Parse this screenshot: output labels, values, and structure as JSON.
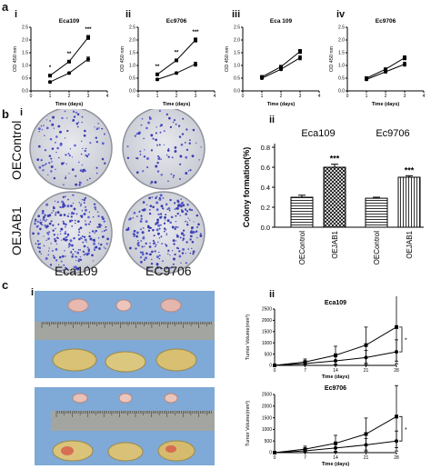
{
  "figure": {
    "panel_a": {
      "letter": "a",
      "subpanels": [
        {
          "roman": "i",
          "title": "Eca109",
          "ylabel": "OD 450 nm",
          "xlabel": "Time (days)"
        },
        {
          "roman": "ii",
          "title": "Ec9706",
          "ylabel": "OD 450 nm",
          "xlabel": "Time (days)"
        },
        {
          "roman": "iii",
          "title": "Eca 109",
          "ylabel": "OD 450 nm",
          "xlabel": "Time (days)"
        },
        {
          "roman": "iv",
          "title": "Ec9706",
          "ylabel": "OD 450 nm",
          "xlabel": "Time (days)"
        }
      ]
    },
    "panel_b": {
      "letter": "b",
      "roman_left": "i",
      "roman_right": "ii",
      "row_labels": [
        "OEControl",
        "OEJAB1"
      ],
      "col_labels": [
        "Eca109",
        "EC9706"
      ]
    },
    "panel_c": {
      "letter": "c",
      "roman_left": "i",
      "roman_right": "ii"
    }
  },
  "chart_data": [
    {
      "type": "line",
      "id": "a-i",
      "title": "Eca109",
      "xlabel": "Time (days)",
      "ylabel": "OD 450 nm",
      "x": [
        1,
        2,
        3
      ],
      "xticks": [
        0,
        1,
        2,
        3,
        4
      ],
      "yticks": [
        "0.0",
        "0.5",
        "1.0",
        "1.5",
        "2.0",
        "2.5"
      ],
      "ylim": [
        0,
        2.5
      ],
      "series": [
        {
          "values": [
            0.6,
            1.15,
            2.1
          ]
        },
        {
          "values": [
            0.35,
            0.7,
            1.25
          ]
        }
      ],
      "annotations": [
        "*",
        "**",
        "***"
      ]
    },
    {
      "type": "line",
      "id": "a-ii",
      "title": "Ec9706",
      "xlabel": "Time (days)",
      "ylabel": "OD 450 nm",
      "x": [
        1,
        2,
        3
      ],
      "xticks": [
        0,
        1,
        2,
        3,
        4
      ],
      "yticks": [
        "0.0",
        "0.5",
        "1.0",
        "1.5",
        "2.0",
        "2.5"
      ],
      "ylim": [
        0,
        2.5
      ],
      "series": [
        {
          "values": [
            0.65,
            1.2,
            2.0
          ]
        },
        {
          "values": [
            0.45,
            0.7,
            1.05
          ]
        }
      ],
      "annotations": [
        "**",
        "**",
        "***"
      ]
    },
    {
      "type": "line",
      "id": "a-iii",
      "title": "Eca 109",
      "xlabel": "Time (days)",
      "ylabel": "OD 450 nm",
      "x": [
        1,
        2,
        3
      ],
      "xticks": [
        0,
        1,
        2,
        3,
        4
      ],
      "yticks": [
        "0.0",
        "0.5",
        "1.0",
        "1.5",
        "2.0",
        "2.5"
      ],
      "ylim": [
        0,
        2.5
      ],
      "series": [
        {
          "values": [
            0.55,
            0.95,
            1.55
          ]
        },
        {
          "values": [
            0.5,
            0.85,
            1.3
          ]
        }
      ],
      "annotations": []
    },
    {
      "type": "line",
      "id": "a-iv",
      "title": "Ec9706",
      "xlabel": "Time (days)",
      "ylabel": "OD 450 nm",
      "x": [
        1,
        2,
        3
      ],
      "xticks": [
        0,
        1,
        2,
        3,
        4
      ],
      "yticks": [
        "0.0",
        "0.5",
        "1.0",
        "1.5",
        "2.0",
        "2.5"
      ],
      "ylim": [
        0,
        2.5
      ],
      "series": [
        {
          "values": [
            0.5,
            0.85,
            1.3
          ]
        },
        {
          "values": [
            0.45,
            0.75,
            1.05
          ]
        }
      ],
      "annotations": []
    },
    {
      "type": "bar",
      "id": "b-ii",
      "ylabel": "Colony formation(%)",
      "yticks": [
        "0.0",
        "0.2",
        "0.4",
        "0.6",
        "0.8"
      ],
      "ylim": [
        0,
        0.8
      ],
      "group_labels": [
        "Eca109",
        "Ec9706"
      ],
      "categories": [
        "OEControl",
        "OEJAB1",
        "OEControl",
        "OEJAB1"
      ],
      "values": [
        0.3,
        0.6,
        0.29,
        0.5
      ],
      "errors": [
        0.02,
        0.03,
        0.01,
        0.015
      ],
      "annotations": [
        "",
        "***",
        "",
        "***"
      ]
    },
    {
      "type": "line",
      "id": "c-ii-top",
      "title": "Eca109",
      "xlabel": "Time (days)",
      "ylabel": "Tumor Volume(mm³)",
      "x": [
        0,
        7,
        14,
        21,
        28
      ],
      "xticks": [
        "0",
        "7",
        "14",
        "21",
        "28"
      ],
      "yticks": [
        "0",
        "500",
        "1000",
        "1500",
        "2000",
        "2500"
      ],
      "ylim": [
        0,
        2500
      ],
      "series": [
        {
          "values": [
            0,
            150,
            450,
            900,
            1700
          ]
        },
        {
          "values": [
            0,
            80,
            200,
            350,
            600
          ]
        }
      ],
      "annotations": [
        "*"
      ]
    },
    {
      "type": "line",
      "id": "c-ii-bottom",
      "title": "Ec9706",
      "xlabel": "Time (days)",
      "ylabel": "Tumor Volume(mm³)",
      "x": [
        0,
        7,
        14,
        21,
        28
      ],
      "xticks": [
        "0",
        "7",
        "14",
        "21",
        "28"
      ],
      "yticks": [
        "0",
        "500",
        "1000",
        "1500",
        "2000",
        "2500"
      ],
      "ylim": [
        0,
        2500
      ],
      "series": [
        {
          "values": [
            0,
            150,
            400,
            800,
            1550
          ]
        },
        {
          "values": [
            0,
            80,
            200,
            330,
            500
          ]
        }
      ],
      "annotations": [
        "*"
      ]
    }
  ]
}
